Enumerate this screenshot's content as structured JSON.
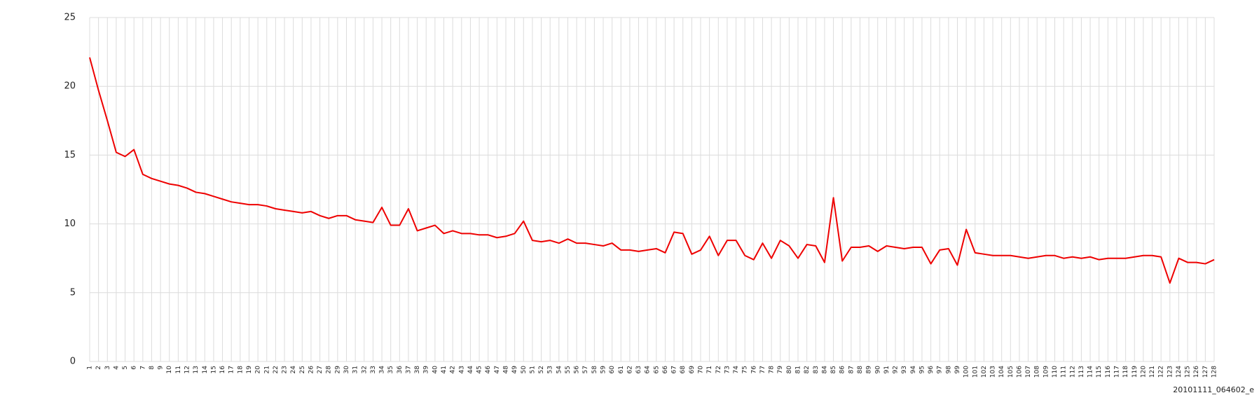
{
  "chart_data": {
    "type": "line",
    "xlabel": "20101111_064602_e",
    "categories": [
      1,
      2,
      3,
      4,
      5,
      6,
      7,
      8,
      9,
      10,
      11,
      12,
      13,
      14,
      15,
      16,
      17,
      18,
      19,
      20,
      21,
      22,
      23,
      24,
      25,
      26,
      27,
      28,
      29,
      30,
      31,
      32,
      33,
      34,
      35,
      36,
      37,
      38,
      39,
      40,
      41,
      42,
      43,
      44,
      45,
      46,
      47,
      48,
      49,
      50,
      51,
      52,
      53,
      54,
      55,
      56,
      57,
      58,
      59,
      60,
      61,
      62,
      63,
      64,
      65,
      66,
      67,
      68,
      69,
      70,
      71,
      72,
      73,
      74,
      75,
      76,
      77,
      78,
      79,
      80,
      81,
      82,
      83,
      84,
      85,
      86,
      87,
      88,
      89,
      90,
      91,
      92,
      93,
      94,
      95,
      96,
      97,
      98,
      99,
      100,
      101,
      102,
      103,
      104,
      105,
      106,
      107,
      108,
      109,
      110,
      111,
      112,
      113,
      114,
      115,
      116,
      117,
      118,
      119,
      120,
      121,
      122,
      123,
      124,
      125,
      126,
      127,
      128
    ],
    "values": [
      22.1,
      19.7,
      17.5,
      15.2,
      14.9,
      15.4,
      13.6,
      13.3,
      13.1,
      12.9,
      12.8,
      12.6,
      12.3,
      12.2,
      12.0,
      11.8,
      11.6,
      11.5,
      11.4,
      11.4,
      11.3,
      11.1,
      11.0,
      10.9,
      10.8,
      10.9,
      10.6,
      10.4,
      10.6,
      10.6,
      10.3,
      10.2,
      10.1,
      11.2,
      9.9,
      9.9,
      11.1,
      9.5,
      9.7,
      9.9,
      9.3,
      9.5,
      9.3,
      9.3,
      9.2,
      9.2,
      9.0,
      9.1,
      9.3,
      10.2,
      8.8,
      8.7,
      8.8,
      8.6,
      8.9,
      8.6,
      8.6,
      8.5,
      8.4,
      8.6,
      8.1,
      8.1,
      8.0,
      8.1,
      8.2,
      7.9,
      9.4,
      9.3,
      7.8,
      8.1,
      9.1,
      7.7,
      8.8,
      8.8,
      7.7,
      7.4,
      8.6,
      7.5,
      8.8,
      8.4,
      7.5,
      8.5,
      8.4,
      7.2,
      11.9,
      7.3,
      8.3,
      8.3,
      8.4,
      8.0,
      8.4,
      8.3,
      8.2,
      8.3,
      8.3,
      7.1,
      8.1,
      8.2,
      7.0,
      9.6,
      7.9,
      7.8,
      7.7,
      7.7,
      7.7,
      7.6,
      7.5,
      7.6,
      7.7,
      7.7,
      7.5,
      7.6,
      7.5,
      7.6,
      7.4,
      7.5,
      7.5,
      7.5,
      7.6,
      7.7,
      7.7,
      7.6,
      5.7,
      7.5,
      7.2,
      7.2,
      7.1,
      7.4
    ],
    "color": "#ee0000",
    "ylim": [
      0,
      25
    ],
    "yticks": [
      0,
      5,
      10,
      15,
      20,
      25
    ],
    "grid": true
  }
}
